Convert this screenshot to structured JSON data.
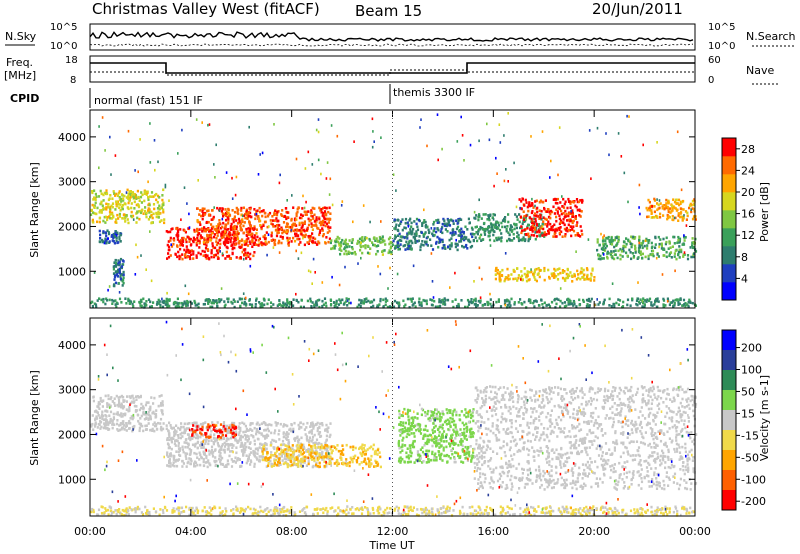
{
  "header": {
    "title": "Christmas Valley West (fitACF)",
    "beam": "Beam 15",
    "date": "20/Jun/2011"
  },
  "top_strip": {
    "nsky_label": "N.Sky",
    "nsearch_label": "N.Search",
    "noise_tick_high": "10^5",
    "noise_tick_low": "10^0",
    "freq_label_1": "Freq.",
    "freq_label_2": "[MHz]",
    "freq_ticks": [
      "18",
      "8"
    ],
    "nave_label": "Nave",
    "nave_ticks": [
      "60",
      "0"
    ],
    "cpid_label": "CPID",
    "cpid_segments": [
      "normal (fast) 151 IF",
      "themis 3300 IF"
    ]
  },
  "colors": {
    "power_scale": [
      "#0000ff",
      "#1f3fbf",
      "#2e7d6e",
      "#3aa05a",
      "#7fc742",
      "#d6d61f",
      "#ffa500",
      "#ff6a00",
      "#ff0000"
    ],
    "velocity_scale": [
      "#0000ff",
      "#2a3f9a",
      "#2e8b57",
      "#7cd64b",
      "#c8c8c8",
      "#f0d94a",
      "#ffa500",
      "#ff6000",
      "#ff0000"
    ]
  },
  "chart_data": [
    {
      "type": "heatmap",
      "name": "power",
      "xlabel": "",
      "ylabel": "Slant Range [km]",
      "ylim": [
        180,
        4600
      ],
      "y_ticks": [
        1000,
        2000,
        3000,
        4000
      ],
      "colorbar": {
        "label": "Power [dB]",
        "ticks": [
          4,
          8,
          12,
          16,
          20,
          24,
          28
        ],
        "range": [
          0,
          30
        ]
      },
      "features": [
        {
          "t_start": 0.0,
          "t_end": 2.9,
          "r_start": 2100,
          "r_end": 2850,
          "value": 18
        },
        {
          "t_start": 0.3,
          "t_end": 1.2,
          "r_start": 1650,
          "r_end": 1950,
          "value": 6
        },
        {
          "t_start": 0.9,
          "t_end": 1.3,
          "r_start": 700,
          "r_end": 1300,
          "value": 8
        },
        {
          "t_start": 3.0,
          "t_end": 6.5,
          "r_start": 1300,
          "r_end": 2000,
          "value": 28
        },
        {
          "t_start": 4.2,
          "t_end": 9.5,
          "r_start": 1600,
          "r_end": 2450,
          "value": 26
        },
        {
          "t_start": 9.5,
          "t_end": 12.0,
          "r_start": 1400,
          "r_end": 1800,
          "value": 14
        },
        {
          "t_start": 12.0,
          "t_end": 15.2,
          "r_start": 1500,
          "r_end": 2200,
          "value": 8
        },
        {
          "t_start": 15.2,
          "t_end": 18.0,
          "r_start": 1700,
          "r_end": 2300,
          "value": 10
        },
        {
          "t_start": 16.0,
          "t_end": 20.0,
          "r_start": 800,
          "r_end": 1100,
          "value": 20
        },
        {
          "t_start": 17.0,
          "t_end": 19.5,
          "r_start": 1800,
          "r_end": 2650,
          "value": 28
        },
        {
          "t_start": 20.0,
          "t_end": 24.0,
          "r_start": 1300,
          "r_end": 1800,
          "value": 12
        },
        {
          "t_start": 22.0,
          "t_end": 24.0,
          "r_start": 2150,
          "r_end": 2650,
          "value": 22
        },
        {
          "t_start": 0.0,
          "t_end": 24.0,
          "r_start": 220,
          "r_end": 420,
          "value": 10
        }
      ]
    },
    {
      "type": "heatmap",
      "name": "velocity",
      "xlabel": "Time UT",
      "ylabel": "Slant Range [km]",
      "ylim": [
        180,
        4600
      ],
      "y_ticks": [
        1000,
        2000,
        3000,
        4000
      ],
      "x_ticks": [
        "00:00",
        "04:00",
        "08:00",
        "12:00",
        "16:00",
        "20:00",
        "00:00"
      ],
      "colorbar": {
        "label": "Velocity [m s-1]",
        "ticks": [
          200,
          100,
          50,
          15,
          -15,
          -50,
          -100,
          -200
        ],
        "range": [
          -250,
          250
        ]
      },
      "features": [
        {
          "t_start": 0.0,
          "t_end": 2.9,
          "r_start": 2100,
          "r_end": 2900,
          "value": 0
        },
        {
          "t_start": 3.0,
          "t_end": 9.5,
          "r_start": 1300,
          "r_end": 2300,
          "value": 0
        },
        {
          "t_start": 4.0,
          "t_end": 5.8,
          "r_start": 1950,
          "r_end": 2250,
          "value": -200
        },
        {
          "t_start": 6.8,
          "t_end": 11.5,
          "r_start": 1300,
          "r_end": 1800,
          "value": -80
        },
        {
          "t_start": 12.2,
          "t_end": 15.2,
          "r_start": 1400,
          "r_end": 2600,
          "value": 40
        },
        {
          "t_start": 15.2,
          "t_end": 24.0,
          "r_start": 800,
          "r_end": 3100,
          "value": 0
        },
        {
          "t_start": 0.0,
          "t_end": 24.0,
          "r_start": 220,
          "r_end": 420,
          "value": -30
        }
      ]
    }
  ]
}
